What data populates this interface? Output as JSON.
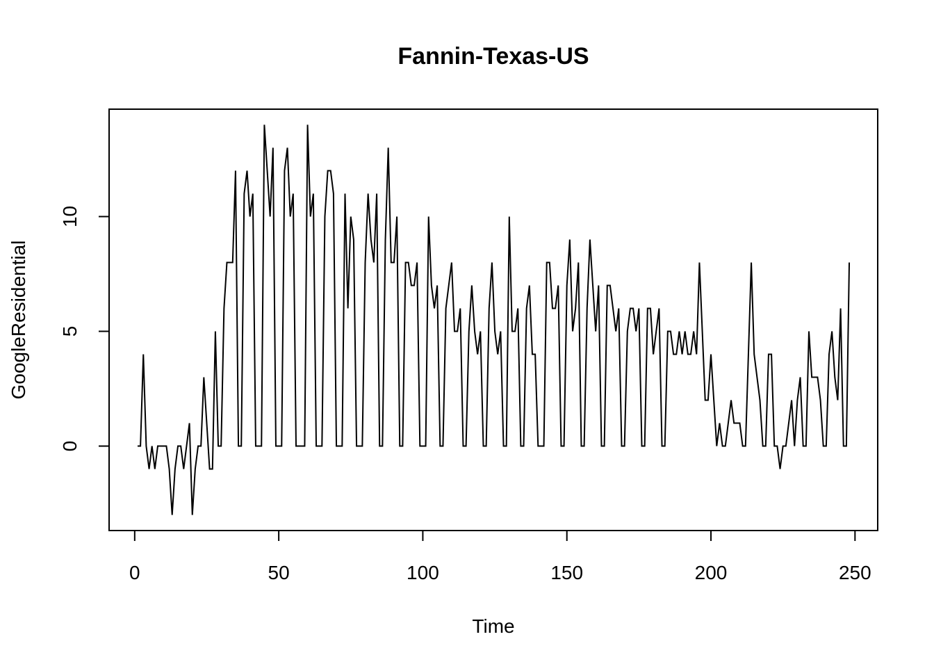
{
  "chart_data": {
    "type": "line",
    "title": "Fannin-Texas-US",
    "x_label": "Time",
    "y_label": "GoogleResidential",
    "x": [
      1,
      2,
      3,
      4,
      5,
      6,
      7,
      8,
      9,
      10,
      11,
      12,
      13,
      14,
      15,
      16,
      17,
      18,
      19,
      20,
      21,
      22,
      23,
      24,
      25,
      26,
      27,
      28,
      29,
      30,
      31,
      32,
      33,
      34,
      35,
      36,
      37,
      38,
      39,
      40,
      41,
      42,
      43,
      44,
      45,
      46,
      47,
      48,
      49,
      50,
      51,
      52,
      53,
      54,
      55,
      56,
      57,
      58,
      59,
      60,
      61,
      62,
      63,
      64,
      65,
      66,
      67,
      68,
      69,
      70,
      71,
      72,
      73,
      74,
      75,
      76,
      77,
      78,
      79,
      80,
      81,
      82,
      83,
      84,
      85,
      86,
      87,
      88,
      89,
      90,
      91,
      92,
      93,
      94,
      95,
      96,
      97,
      98,
      99,
      100,
      101,
      102,
      103,
      104,
      105,
      106,
      107,
      108,
      109,
      110,
      111,
      112,
      113,
      114,
      115,
      116,
      117,
      118,
      119,
      120,
      121,
      122,
      123,
      124,
      125,
      126,
      127,
      128,
      129,
      130,
      131,
      132,
      133,
      134,
      135,
      136,
      137,
      138,
      139,
      140,
      141,
      142,
      143,
      144,
      145,
      146,
      147,
      148,
      149,
      150,
      151,
      152,
      153,
      154,
      155,
      156,
      157,
      158,
      159,
      160,
      161,
      162,
      163,
      164,
      165,
      166,
      167,
      168,
      169,
      170,
      171,
      172,
      173,
      174,
      175,
      176,
      177,
      178,
      179,
      180,
      181,
      182,
      183,
      184,
      185,
      186,
      187,
      188,
      189,
      190,
      191,
      192,
      193,
      194,
      195,
      196,
      197,
      198,
      199,
      200,
      201,
      202,
      203,
      204,
      205,
      206,
      207,
      208,
      209,
      210,
      211,
      212,
      213,
      214,
      215,
      216,
      217,
      218,
      219,
      220,
      221,
      222,
      223,
      224,
      225,
      226,
      227,
      228,
      229,
      230,
      231,
      232,
      233,
      234,
      235,
      236,
      237,
      238,
      239,
      240,
      241,
      242,
      243,
      244,
      245,
      246,
      247,
      248
    ],
    "values": [
      0,
      0,
      4,
      0,
      -1,
      0,
      -1,
      0,
      0,
      0,
      0,
      -1,
      -3,
      -1,
      0,
      0,
      -1,
      0,
      1,
      -3,
      -1,
      0,
      0,
      3,
      1,
      -1,
      -1,
      5,
      0,
      0,
      6,
      8,
      8,
      8,
      12,
      0,
      0,
      11,
      12,
      10,
      11,
      0,
      0,
      0,
      14,
      12,
      10,
      13,
      0,
      0,
      0,
      12,
      13,
      10,
      11,
      0,
      0,
      0,
      0,
      14,
      10,
      11,
      0,
      0,
      0,
      10,
      12,
      12,
      11,
      0,
      0,
      0,
      11,
      6,
      10,
      9,
      0,
      0,
      0,
      8,
      11,
      9,
      8,
      11,
      0,
      0,
      9,
      13,
      8,
      8,
      10,
      0,
      0,
      8,
      8,
      7,
      7,
      8,
      0,
      0,
      0,
      10,
      7,
      6,
      7,
      0,
      0,
      6,
      7,
      8,
      5,
      5,
      6,
      0,
      0,
      5,
      7,
      5,
      4,
      5,
      0,
      0,
      6,
      8,
      5,
      4,
      5,
      0,
      0,
      10,
      5,
      5,
      6,
      0,
      0,
      6,
      7,
      4,
      4,
      0,
      0,
      0,
      8,
      8,
      6,
      6,
      7,
      0,
      0,
      7,
      9,
      5,
      6,
      8,
      0,
      0,
      6,
      9,
      7,
      5,
      7,
      0,
      0,
      7,
      7,
      6,
      5,
      6,
      0,
      0,
      5,
      6,
      6,
      5,
      6,
      0,
      0,
      6,
      6,
      4,
      5,
      6,
      0,
      0,
      5,
      5,
      4,
      4,
      5,
      4,
      5,
      4,
      4,
      5,
      4,
      8,
      5,
      2,
      2,
      4,
      2,
      0,
      1,
      0,
      0,
      1,
      2,
      1,
      1,
      1,
      0,
      0,
      4,
      8,
      4,
      3,
      2,
      0,
      0,
      4,
      4,
      0,
      0,
      -1,
      0,
      0,
      1,
      2,
      0,
      2,
      3,
      0,
      0,
      5,
      3,
      3,
      3,
      2,
      0,
      0,
      4,
      5,
      3,
      2,
      6,
      0,
      0,
      8
    ],
    "color": "#000000",
    "xlim": [
      -8.88,
      257.88
    ],
    "ylim": [
      -3.68,
      14.68
    ],
    "xticks": [
      0,
      50,
      100,
      150,
      200,
      250
    ],
    "yticks": [
      0,
      5,
      10
    ]
  }
}
